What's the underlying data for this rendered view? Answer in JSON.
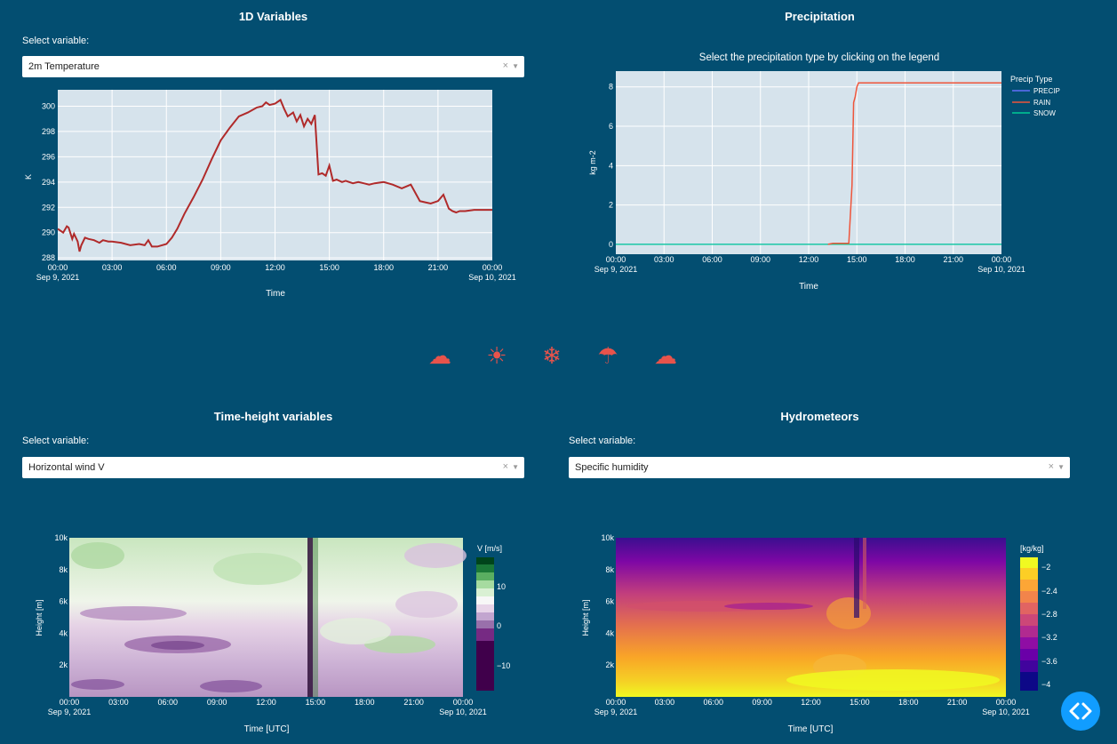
{
  "colors": {
    "background": "#034e71",
    "plot_bg": "#d6e3ec",
    "line_red": "#b02a2a",
    "precip": "#636efa",
    "rain": "#ef553b",
    "snow": "#00cc96",
    "icon": "#e8534b",
    "fab": "#119dff"
  },
  "panel1": {
    "title": "1D Variables",
    "select_label": "Select variable:",
    "selected": "2m Temperature",
    "chart_data": {
      "type": "line",
      "xlabel": "Time",
      "ylabel": "K",
      "x_ticks": [
        "00:00",
        "03:00",
        "06:00",
        "09:00",
        "12:00",
        "15:00",
        "18:00",
        "21:00",
        "00:00"
      ],
      "x_date_start": "Sep 9, 2021",
      "x_date_end": "Sep 10, 2021",
      "y_ticks": [
        "288",
        "290",
        "292",
        "294",
        "296",
        "298",
        "300"
      ],
      "ylim": [
        287.8,
        301.3
      ],
      "grid": true,
      "series": [
        {
          "x": [
            0,
            0.3,
            0.5,
            0.6,
            0.8,
            0.9,
            1.0,
            1.1,
            1.2,
            1.3,
            1.5,
            1.7,
            2.0,
            2.3,
            2.5,
            2.8,
            3.0,
            3.5,
            4.0,
            4.5,
            4.8,
            5.0,
            5.2,
            5.5,
            6.0,
            6.3,
            6.6,
            7.0,
            7.5,
            8.0,
            8.5,
            9.0,
            9.5,
            10.0,
            10.5,
            11.0,
            11.3,
            11.5,
            11.7,
            12.0,
            12.3,
            12.5,
            12.7,
            13.0,
            13.2,
            13.4,
            13.6,
            13.8,
            14.0,
            14.2,
            14.4,
            14.6,
            14.8,
            15.0,
            15.2,
            15.4,
            15.7,
            15.9,
            16.1,
            16.3,
            16.6,
            16.9,
            17.2,
            17.5,
            18.0,
            18.5,
            19.0,
            19.5,
            20.0,
            20.3,
            20.6,
            21.0,
            21.3,
            21.6,
            21.8,
            22.0,
            22.2,
            22.5,
            23.0,
            23.5,
            24.0
          ],
          "y": [
            290.3,
            290.0,
            290.5,
            290.4,
            289.5,
            289.9,
            289.6,
            289.3,
            288.5,
            289.0,
            289.6,
            289.5,
            289.4,
            289.2,
            289.4,
            289.3,
            289.3,
            289.2,
            289.0,
            289.1,
            289.0,
            289.4,
            288.9,
            288.9,
            289.1,
            289.6,
            290.3,
            291.5,
            292.8,
            294.2,
            295.8,
            297.3,
            298.3,
            299.2,
            299.5,
            299.9,
            300.0,
            300.3,
            300.1,
            300.2,
            300.5,
            299.8,
            299.2,
            299.5,
            298.8,
            299.3,
            298.4,
            299.0,
            298.6,
            299.3,
            294.6,
            294.7,
            294.5,
            295.3,
            294.1,
            294.2,
            294.0,
            294.1,
            294.0,
            293.9,
            294.0,
            293.9,
            293.8,
            293.9,
            294.0,
            293.8,
            293.5,
            293.8,
            292.5,
            292.4,
            292.3,
            292.5,
            293.0,
            291.9,
            291.7,
            291.6,
            291.7,
            291.7,
            291.8,
            291.8,
            291.8
          ]
        }
      ]
    }
  },
  "panel2": {
    "title": "Precipitation",
    "chart_data": {
      "type": "line",
      "title": "Select the precipitation type by clicking on the legend",
      "xlabel": "Time",
      "ylabel": "kg m-2",
      "x_ticks": [
        "00:00",
        "03:00",
        "06:00",
        "09:00",
        "12:00",
        "15:00",
        "18:00",
        "21:00",
        "00:00"
      ],
      "x_date_start": "Sep 9, 2021",
      "x_date_end": "Sep 10, 2021",
      "y_ticks": [
        "0",
        "2",
        "4",
        "6",
        "8"
      ],
      "ylim": [
        -0.5,
        8.8
      ],
      "grid": true,
      "legend_title": "Precip Type",
      "legend_position": "right",
      "series": [
        {
          "name": "PRECIP",
          "x": [
            0,
            24
          ],
          "y": [
            0,
            0
          ]
        },
        {
          "name": "RAIN",
          "x": [
            13.2,
            13.5,
            14.0,
            14.5,
            14.7,
            14.8,
            14.9,
            15.0,
            15.1,
            15.5,
            24.0
          ],
          "y": [
            0,
            0.05,
            0.05,
            0.05,
            3.0,
            7.2,
            7.5,
            8.0,
            8.2,
            8.2,
            8.2
          ]
        },
        {
          "name": "SNOW",
          "x": [
            0,
            24
          ],
          "y": [
            0,
            0
          ]
        }
      ]
    }
  },
  "icons": [
    "cloud-icon",
    "sun-icon",
    "snowflake-icon",
    "umbrella-icon",
    "cloud-icon"
  ],
  "icon_glyphs": [
    "☁",
    "☀",
    "❄",
    "☂",
    "☁"
  ],
  "panel3": {
    "title": "Time-height variables",
    "select_label": "Select variable:",
    "selected": "Horizontal wind V",
    "chart_data": {
      "type": "heatmap",
      "xlabel": "Time [UTC]",
      "ylabel": "Height [m]",
      "x_ticks": [
        "00:00",
        "03:00",
        "06:00",
        "09:00",
        "12:00",
        "15:00",
        "18:00",
        "21:00",
        "00:00"
      ],
      "x_date_start": "Sep 9, 2021",
      "x_date_end": "Sep 10, 2021",
      "y_ticks": [
        "2k",
        "4k",
        "6k",
        "8k",
        "10k"
      ],
      "colorbar_title": "V [m/s]",
      "colorbar_ticks": [
        "10",
        "0",
        "−10"
      ]
    }
  },
  "panel4": {
    "title": "Hydrometeors",
    "select_label": "Select variable:",
    "selected": "Specific humidity",
    "chart_data": {
      "type": "heatmap",
      "xlabel": "Time [UTC]",
      "ylabel": "Height [m]",
      "x_ticks": [
        "00:00",
        "03:00",
        "06:00",
        "09:00",
        "12:00",
        "15:00",
        "18:00",
        "21:00",
        "00:00"
      ],
      "x_date_start": "Sep 9, 2021",
      "x_date_end": "Sep 10, 2021",
      "y_ticks": [
        "2k",
        "4k",
        "6k",
        "8k",
        "10k"
      ],
      "colorbar_title": "[kg/kg]",
      "colorbar_ticks": [
        "−2",
        "−2.4",
        "−2.8",
        "−3.2",
        "−3.6",
        "−4"
      ]
    }
  },
  "clear_glyph": "×",
  "caret_glyph": "▼"
}
